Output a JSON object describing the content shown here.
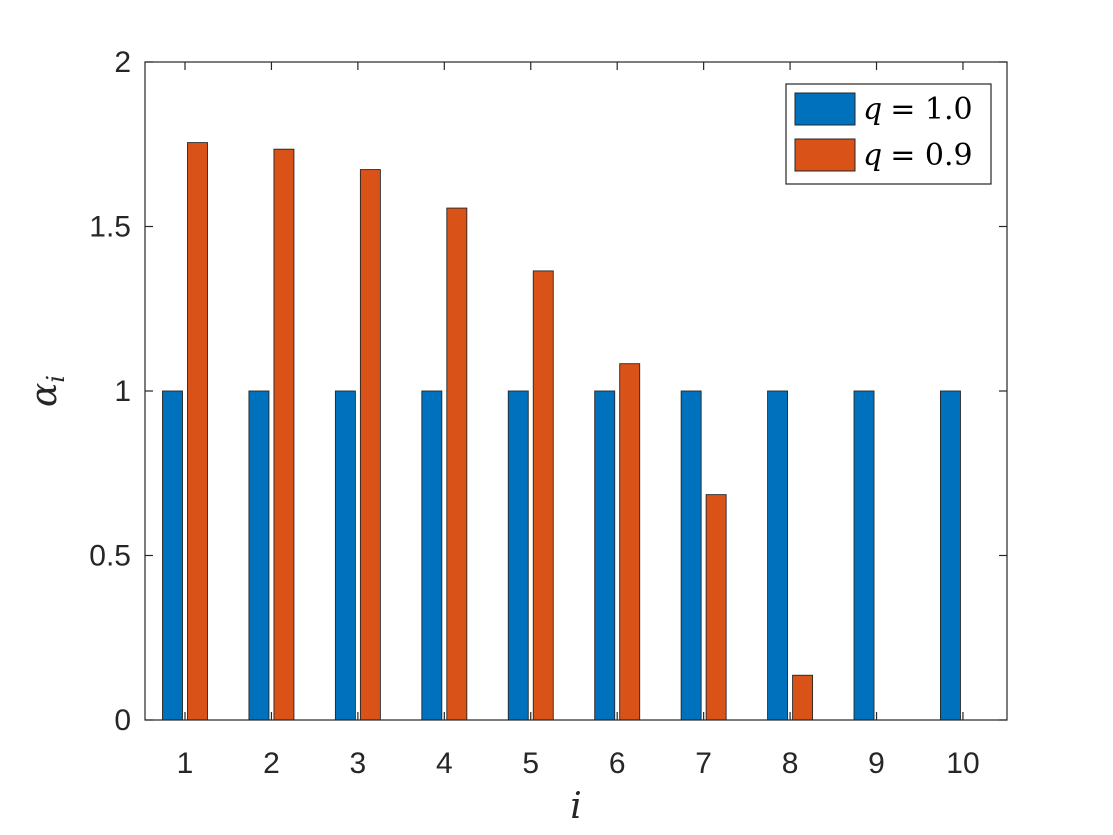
{
  "chart_data": {
    "type": "bar",
    "categories": [
      "1",
      "2",
      "3",
      "4",
      "5",
      "6",
      "7",
      "8",
      "9",
      "10"
    ],
    "series": [
      {
        "name": "q = 1.0",
        "color": "#0072BD",
        "values": [
          1,
          1,
          1,
          1,
          1,
          1,
          1,
          1,
          1,
          1
        ]
      },
      {
        "name": "q = 0.9",
        "color": "#D95319",
        "values": [
          1.755,
          1.735,
          1.673,
          1.556,
          1.365,
          1.083,
          0.685,
          0.136,
          0,
          0
        ]
      }
    ],
    "xlabel": "i",
    "ylabel": "α",
    "ylabel_subscript": "i",
    "ylim": [
      0,
      2
    ],
    "yticks": [
      0,
      0.5,
      1,
      1.5,
      2
    ],
    "ytick_labels": [
      "0",
      "0.5",
      "1",
      "1.5",
      "2"
    ],
    "grid": false,
    "legend_position": "top-right",
    "legend_labels": [
      {
        "var": "q",
        "eq": "= 1.0"
      },
      {
        "var": "q",
        "eq": "= 0.9"
      }
    ]
  }
}
